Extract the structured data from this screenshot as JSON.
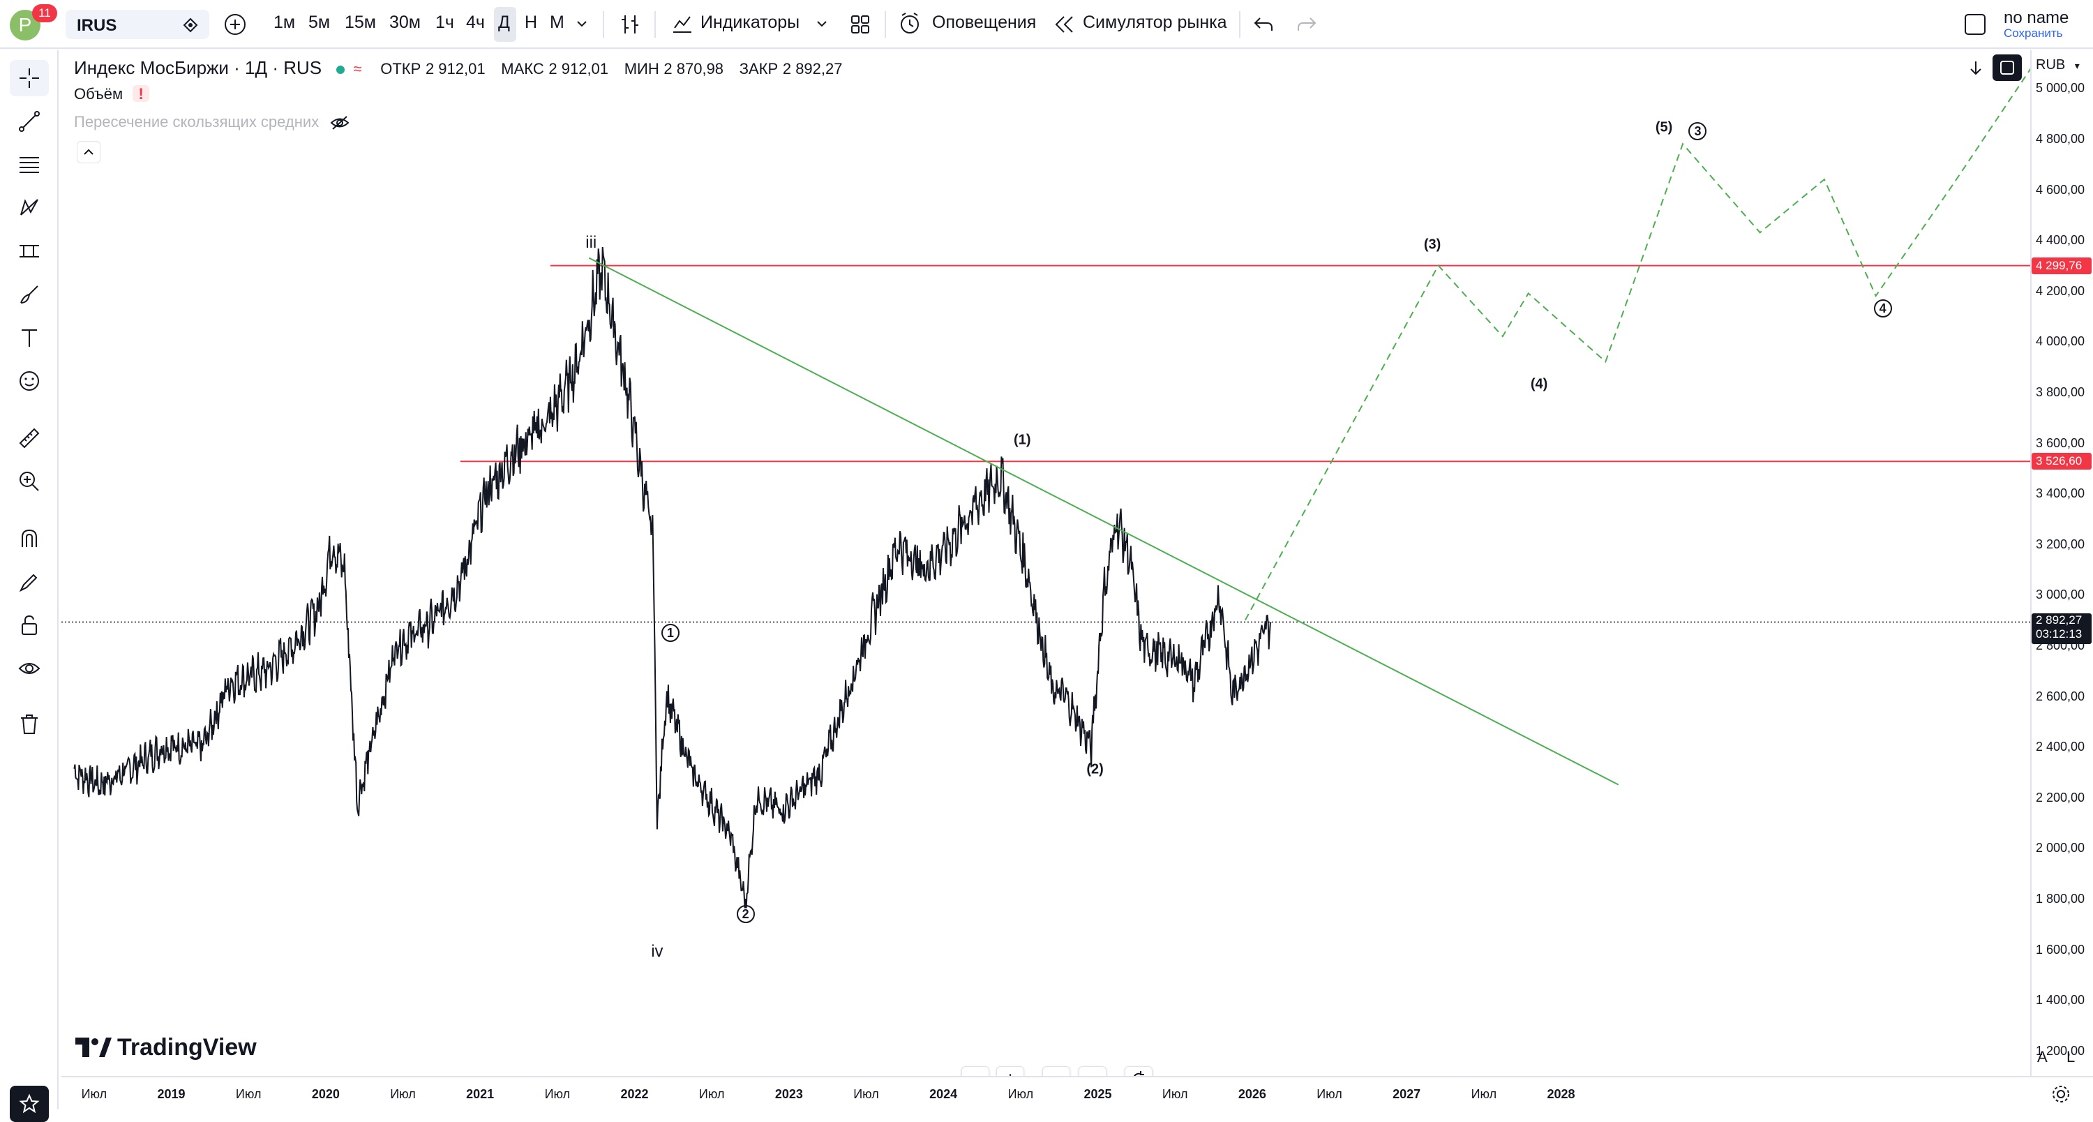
{
  "header": {
    "avatar_letter": "P",
    "notifications": "11",
    "symbol": "IRUS",
    "timeframes": [
      "1м",
      "5м",
      "15м",
      "30м",
      "1ч",
      "4ч",
      "Д",
      "Н",
      "М"
    ],
    "active_timeframe": "Д",
    "indicators_label": "Индикаторы",
    "alerts_label": "Оповещения",
    "replay_label": "Симулятор рынка",
    "layout_name": "no name",
    "save_label": "Сохранить"
  },
  "legend": {
    "title": "Индекс МосБиржи · 1Д · RUS",
    "open_label": "ОТКР",
    "open": "2 912,01",
    "high_label": "МАКС",
    "high": "2 912,01",
    "low_label": "МИН",
    "low": "2 870,98",
    "close_label": "ЗАКР",
    "close": "2 892,27",
    "volume_label": "Объём",
    "ma_cross_label": "Пересечение скользящих средних"
  },
  "price_axis": {
    "currency": "RUB",
    "ticks": [
      "5 000,00",
      "4 800,00",
      "4 600,00",
      "4 400,00",
      "4 200,00",
      "4 000,00",
      "3 800,00",
      "3 600,00",
      "3 400,00",
      "3 200,00",
      "3 000,00",
      "2 800,00",
      "2 600,00",
      "2 400,00",
      "2 200,00",
      "2 000,00",
      "1 800,00",
      "1 600,00",
      "1 400,00",
      "1 200,00"
    ],
    "level_labels": [
      "4 299,76",
      "3 526,60"
    ],
    "last_price": "2 892,27",
    "countdown": "03:12:13",
    "auto_label": "A",
    "log_label": "L"
  },
  "time_axis": {
    "ticks": [
      "Июл",
      "2019",
      "Июл",
      "2020",
      "Июл",
      "2021",
      "Июл",
      "2022",
      "Июл",
      "2023",
      "Июл",
      "2024",
      "Июл",
      "2025",
      "Июл",
      "2026",
      "Июл",
      "2027",
      "Июл",
      "2028"
    ]
  },
  "waves": {
    "iii": "iii",
    "iv": "iv",
    "w1": "(1)",
    "w2": "(2)",
    "w3": "(3)",
    "w4": "(4)",
    "w5": "(5)",
    "c1": "1",
    "c2": "2",
    "c3": "3",
    "c4": "4"
  },
  "branding": "TradingView",
  "colors": {
    "accent": "#2962ff",
    "level": "#f23645",
    "trend": "#4caf50",
    "projection": "#4caf50",
    "avatar": "#8bbf67"
  },
  "icons": [
    "crosshair-icon",
    "trendline-icon",
    "fib-icon",
    "pattern-icon",
    "measure-icon",
    "brush-icon",
    "text-icon",
    "emoji-icon",
    "ruler-icon",
    "zoom-icon",
    "magnet-icon",
    "lock-draw-icon",
    "lock-icon",
    "eye-icon",
    "trash-icon",
    "star-icon"
  ],
  "chart_data": {
    "type": "line",
    "title": "Индекс МосБиржи · 1Д · RUS",
    "x_type": "date",
    "series": [
      {
        "name": "Индекс МосБиржи",
        "x": [
          "2018-05",
          "2018-07",
          "2018-09",
          "2018-12",
          "2019-03",
          "2019-05",
          "2019-08",
          "2019-10",
          "2019-12",
          "2020-01",
          "2020-02",
          "2020-03",
          "2020-06",
          "2020-09",
          "2020-11",
          "2021-01",
          "2021-03",
          "2021-06",
          "2021-08",
          "2021-10",
          "2021-12",
          "2022-01",
          "2022-02",
          "2022-02-24",
          "2022-03",
          "2022-05",
          "2022-08",
          "2022-09-20",
          "2022-10",
          "2022-12",
          "2023-03",
          "2023-05",
          "2023-07",
          "2023-09",
          "2023-11",
          "2024-01",
          "2024-03",
          "2024-05",
          "2024-07",
          "2024-09",
          "2024-10",
          "2024-12-16",
          "2025-01",
          "2025-02",
          "2025-03",
          "2025-04",
          "2025-06",
          "2025-07",
          "2025-08",
          "2025-10",
          "2025-11",
          "2026-01",
          "2026-02"
        ],
        "values": [
          2300,
          2250,
          2300,
          2400,
          2400,
          2650,
          2700,
          2800,
          2950,
          3200,
          3100,
          2180,
          2800,
          2900,
          3050,
          3400,
          3550,
          3700,
          3900,
          4290,
          3800,
          3500,
          3200,
          2100,
          2600,
          2300,
          2050,
          1780,
          2200,
          2150,
          2300,
          2600,
          2900,
          3200,
          3100,
          3200,
          3350,
          3470,
          3100,
          2620,
          2600,
          2400,
          3000,
          3300,
          3150,
          2800,
          2750,
          2750,
          2650,
          3000,
          2600,
          2800,
          2892
        ]
      }
    ],
    "horizontal_levels": [
      4299.76,
      3526.6
    ],
    "trend_line": {
      "from": [
        "2021-09",
        4330
      ],
      "to": [
        "2028-05",
        2250
      ]
    },
    "projection": {
      "x": [
        "2025-12",
        "2027-03",
        "2027-08",
        "2027-10",
        "2028-04",
        "2028-10",
        "2029-04",
        "2029-09",
        "2030-01",
        "2030-07",
        "2031-02"
      ],
      "values": [
        2900,
        4300,
        4020,
        4190,
        3920,
        4780,
        4430,
        4640,
        4180,
        4620,
        5150
      ]
    },
    "ylim": [
      1100,
      5150
    ],
    "xlim": [
      "2018-04",
      "2031-01"
    ],
    "y_ticks": [
      1200,
      1400,
      1600,
      1800,
      2000,
      2200,
      2400,
      2600,
      2800,
      3000,
      3200,
      3400,
      3600,
      3800,
      4000,
      4200,
      4400,
      4600,
      4800,
      5000
    ],
    "last_price": 2892.27,
    "grid": false,
    "log_scale": false
  }
}
